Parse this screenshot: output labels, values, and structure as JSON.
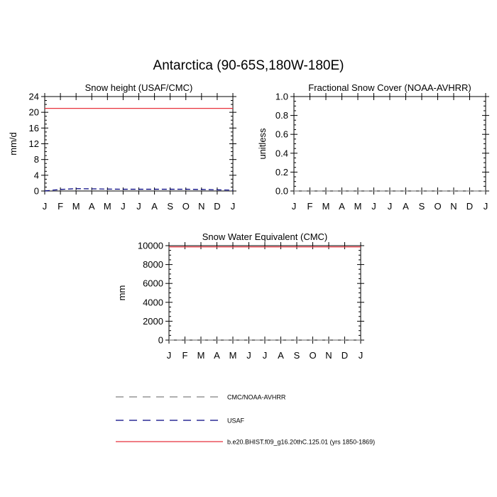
{
  "page": {
    "title": "Antarctica (90-65S,180W-180E)"
  },
  "chart_data": [
    {
      "type": "line",
      "title": "Snow height (USAF/CMC)",
      "xlabel": "",
      "ylabel": "mm/d",
      "categories": [
        "J",
        "F",
        "M",
        "A",
        "M",
        "J",
        "J",
        "A",
        "S",
        "O",
        "N",
        "D",
        "J"
      ],
      "ylim": [
        0,
        24
      ],
      "yticks": [
        0,
        4,
        8,
        12,
        16,
        20,
        24
      ],
      "grid": false,
      "series": [
        {
          "name": "CMC/NOAA-AVHRR",
          "color": "#808080",
          "dash": "dashed",
          "values": [
            0.1,
            0.1,
            0.1,
            0.1,
            0.1,
            0.1,
            0.1,
            0.1,
            0.1,
            0.1,
            0.1,
            0.1,
            0.1
          ]
        },
        {
          "name": "USAF",
          "color": "#000080",
          "dash": "dashed",
          "values": [
            0.0,
            0.4,
            0.6,
            0.55,
            0.5,
            0.45,
            0.45,
            0.45,
            0.45,
            0.45,
            0.4,
            0.3,
            0.2
          ]
        },
        {
          "name": "b.e20.BHIST.f09_g16.20thC.125.01 (yrs 1850-1869)",
          "color": "#e8323c",
          "dash": "solid",
          "values": [
            21,
            21,
            21,
            21,
            21,
            21,
            21,
            21,
            21,
            21,
            21,
            21,
            21
          ]
        }
      ]
    },
    {
      "type": "line",
      "title": "Fractional Snow Cover (NOAA-AVHRR)",
      "xlabel": "",
      "ylabel": "unitless",
      "categories": [
        "J",
        "F",
        "M",
        "A",
        "M",
        "J",
        "J",
        "A",
        "S",
        "O",
        "N",
        "D",
        "J"
      ],
      "ylim": [
        0,
        1
      ],
      "yticks": [
        "0.0",
        "0.2",
        "0.4",
        "0.6",
        "0.8",
        "1.0"
      ],
      "grid": false,
      "series": [
        {
          "name": "CMC/NOAA-AVHRR",
          "color": "#808080",
          "dash": "dashed",
          "values": [
            0,
            0,
            0,
            0,
            0,
            0,
            0,
            0,
            0,
            0,
            0,
            0,
            0
          ]
        }
      ]
    },
    {
      "type": "line",
      "title": "Snow Water Equivalent (CMC)",
      "xlabel": "",
      "ylabel": "mm",
      "categories": [
        "J",
        "F",
        "M",
        "A",
        "M",
        "J",
        "J",
        "A",
        "S",
        "O",
        "N",
        "D",
        "J"
      ],
      "ylim": [
        0,
        10000
      ],
      "yticks": [
        0,
        2000,
        4000,
        6000,
        8000,
        10000
      ],
      "grid": false,
      "series": [
        {
          "name": "CMC/NOAA-AVHRR",
          "color": "#808080",
          "dash": "dashed",
          "values": [
            0,
            0,
            0,
            0,
            0,
            0,
            0,
            0,
            0,
            0,
            0,
            0,
            0
          ]
        },
        {
          "name": "b.e20.BHIST.f09_g16.20thC.125.01 (yrs 1850-1869)",
          "color": "#e8323c",
          "dash": "solid",
          "values": [
            9870,
            9870,
            9870,
            9870,
            9870,
            9870,
            9870,
            9870,
            9870,
            9870,
            9870,
            9870,
            9870
          ]
        }
      ]
    }
  ],
  "legend": {
    "placement": "bottom",
    "items": [
      {
        "label": "CMC/NOAA-AVHRR",
        "color": "#808080",
        "dash": "dashed"
      },
      {
        "label": "USAF",
        "color": "#000080",
        "dash": "dashed"
      },
      {
        "label": "b.e20.BHIST.f09_g16.20thC.125.01 (yrs 1850-1869)",
        "color": "#e8323c",
        "dash": "solid"
      }
    ]
  }
}
